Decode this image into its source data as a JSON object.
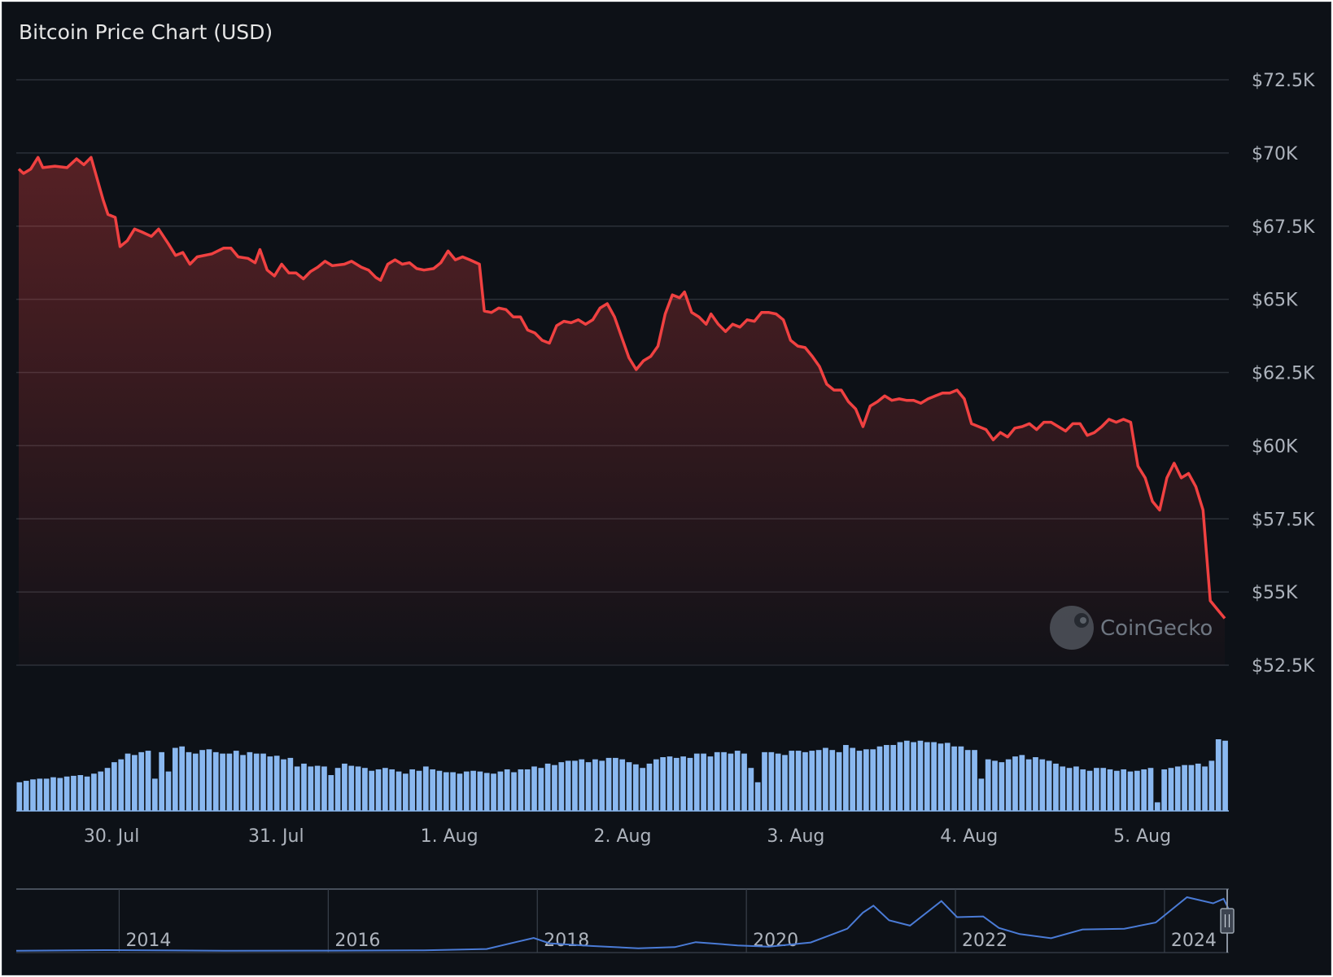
{
  "chart_data": {
    "type": "line",
    "title": "Bitcoin Price Chart (USD)",
    "currency": "USD",
    "watermark": "CoinGecko",
    "y_ticks": [
      52500,
      55000,
      57500,
      60000,
      62500,
      65000,
      67500,
      70000,
      72500
    ],
    "y_tick_labels": [
      "$52.5K",
      "$55K",
      "$57.5K",
      "$60K",
      "$62.5K",
      "$65K",
      "$67.5K",
      "$70K",
      "$72.5K"
    ],
    "ylim": [
      52500,
      72500
    ],
    "x_tick_labels": [
      "30. Jul",
      "31. Jul",
      "1. Aug",
      "2. Aug",
      "3. Aug",
      "4. Aug",
      "5. Aug"
    ],
    "x_tick_positions_days": [
      0.55,
      1.5,
      2.5,
      3.5,
      4.5,
      5.5,
      6.5
    ],
    "x_range_days": [
      0,
      7
    ],
    "colors": {
      "line": "#f04141",
      "volume": "#8ab8f0",
      "grid": "#2b3138",
      "navigator": "#4a7bd6"
    },
    "price_keypoints": [
      [
        0.0,
        69450
      ],
      [
        0.02,
        69300
      ],
      [
        0.05,
        69450
      ],
      [
        0.08,
        69850
      ],
      [
        0.1,
        69500
      ],
      [
        0.15,
        69550
      ],
      [
        0.2,
        69500
      ],
      [
        0.24,
        69800
      ],
      [
        0.27,
        69600
      ],
      [
        0.3,
        69850
      ],
      [
        0.35,
        68400
      ],
      [
        0.37,
        67900
      ],
      [
        0.4,
        67800
      ],
      [
        0.42,
        66800
      ],
      [
        0.45,
        67000
      ],
      [
        0.48,
        67400
      ],
      [
        0.51,
        67300
      ],
      [
        0.55,
        67150
      ],
      [
        0.58,
        67400
      ],
      [
        0.62,
        66900
      ],
      [
        0.65,
        66500
      ],
      [
        0.68,
        66600
      ],
      [
        0.71,
        66200
      ],
      [
        0.74,
        66450
      ],
      [
        0.8,
        66550
      ],
      [
        0.85,
        66750
      ],
      [
        0.88,
        66750
      ],
      [
        0.91,
        66450
      ],
      [
        0.95,
        66400
      ],
      [
        0.98,
        66250
      ],
      [
        1.0,
        66700
      ],
      [
        1.03,
        66000
      ],
      [
        1.06,
        65800
      ],
      [
        1.09,
        66200
      ],
      [
        1.12,
        65900
      ],
      [
        1.15,
        65900
      ],
      [
        1.18,
        65700
      ],
      [
        1.21,
        65950
      ],
      [
        1.24,
        66100
      ],
      [
        1.27,
        66300
      ],
      [
        1.3,
        66150
      ],
      [
        1.35,
        66200
      ],
      [
        1.38,
        66300
      ],
      [
        1.42,
        66100
      ],
      [
        1.45,
        66000
      ],
      [
        1.48,
        65750
      ],
      [
        1.5,
        65650
      ],
      [
        1.53,
        66200
      ],
      [
        1.56,
        66350
      ],
      [
        1.59,
        66200
      ],
      [
        1.62,
        66250
      ],
      [
        1.65,
        66050
      ],
      [
        1.68,
        66000
      ],
      [
        1.72,
        66050
      ],
      [
        1.75,
        66250
      ],
      [
        1.78,
        66650
      ],
      [
        1.81,
        66350
      ],
      [
        1.84,
        66450
      ],
      [
        1.87,
        66350
      ],
      [
        1.91,
        66200
      ],
      [
        1.93,
        64600
      ],
      [
        1.96,
        64550
      ],
      [
        1.99,
        64700
      ],
      [
        2.02,
        64650
      ],
      [
        2.05,
        64400
      ],
      [
        2.08,
        64400
      ],
      [
        2.11,
        63950
      ],
      [
        2.14,
        63850
      ],
      [
        2.17,
        63600
      ],
      [
        2.2,
        63500
      ],
      [
        2.23,
        64100
      ],
      [
        2.26,
        64250
      ],
      [
        2.29,
        64200
      ],
      [
        2.32,
        64300
      ],
      [
        2.35,
        64150
      ],
      [
        2.38,
        64300
      ],
      [
        2.41,
        64700
      ],
      [
        2.44,
        64850
      ],
      [
        2.47,
        64400
      ],
      [
        2.5,
        63700
      ],
      [
        2.53,
        63000
      ],
      [
        2.56,
        62600
      ],
      [
        2.59,
        62900
      ],
      [
        2.62,
        63050
      ],
      [
        2.65,
        63400
      ],
      [
        2.68,
        64500
      ],
      [
        2.71,
        65150
      ],
      [
        2.74,
        65050
      ],
      [
        2.76,
        65250
      ],
      [
        2.79,
        64550
      ],
      [
        2.82,
        64400
      ],
      [
        2.85,
        64150
      ],
      [
        2.87,
        64500
      ],
      [
        2.9,
        64150
      ],
      [
        2.93,
        63900
      ],
      [
        2.96,
        64150
      ],
      [
        2.99,
        64050
      ],
      [
        3.02,
        64300
      ],
      [
        3.05,
        64250
      ],
      [
        3.08,
        64550
      ],
      [
        3.11,
        64550
      ],
      [
        3.14,
        64500
      ],
      [
        3.17,
        64300
      ],
      [
        3.2,
        63600
      ],
      [
        3.23,
        63400
      ],
      [
        3.26,
        63350
      ],
      [
        3.29,
        63050
      ],
      [
        3.32,
        62700
      ],
      [
        3.35,
        62100
      ],
      [
        3.38,
        61900
      ],
      [
        3.41,
        61900
      ],
      [
        3.44,
        61500
      ],
      [
        3.47,
        61250
      ],
      [
        3.5,
        60650
      ],
      [
        3.53,
        61350
      ],
      [
        3.56,
        61500
      ],
      [
        3.59,
        61700
      ],
      [
        3.62,
        61550
      ],
      [
        3.65,
        61600
      ],
      [
        3.68,
        61550
      ],
      [
        3.71,
        61550
      ],
      [
        3.74,
        61450
      ],
      [
        3.77,
        61600
      ],
      [
        3.8,
        61700
      ],
      [
        3.83,
        61800
      ],
      [
        3.86,
        61800
      ],
      [
        3.89,
        61900
      ],
      [
        3.92,
        61600
      ],
      [
        3.95,
        60750
      ],
      [
        3.98,
        60650
      ],
      [
        4.01,
        60550
      ],
      [
        4.04,
        60200
      ],
      [
        4.07,
        60450
      ],
      [
        4.1,
        60300
      ],
      [
        4.13,
        60600
      ],
      [
        4.16,
        60650
      ],
      [
        4.19,
        60750
      ],
      [
        4.22,
        60550
      ],
      [
        4.25,
        60800
      ],
      [
        4.28,
        60800
      ],
      [
        4.31,
        60650
      ],
      [
        4.34,
        60500
      ],
      [
        4.37,
        60750
      ],
      [
        4.4,
        60750
      ],
      [
        4.43,
        60350
      ],
      [
        4.46,
        60450
      ],
      [
        4.49,
        60650
      ],
      [
        4.52,
        60900
      ],
      [
        4.55,
        60800
      ],
      [
        4.58,
        60900
      ],
      [
        4.61,
        60800
      ],
      [
        4.64,
        59300
      ],
      [
        4.67,
        58900
      ],
      [
        4.7,
        58100
      ],
      [
        4.73,
        57800
      ],
      [
        4.76,
        58900
      ],
      [
        4.79,
        59400
      ],
      [
        4.82,
        58900
      ],
      [
        4.85,
        59050
      ],
      [
        4.88,
        58600
      ],
      [
        4.91,
        57800
      ],
      [
        4.94,
        54700
      ],
      [
        4.97,
        54400
      ],
      [
        5.0,
        54100
      ]
    ],
    "volume_relative": [
      0.4,
      0.42,
      0.44,
      0.45,
      0.45,
      0.47,
      0.46,
      0.48,
      0.49,
      0.5,
      0.48,
      0.52,
      0.55,
      0.6,
      0.68,
      0.72,
      0.8,
      0.78,
      0.82,
      0.84,
      0.45,
      0.82,
      0.55,
      0.88,
      0.9,
      0.82,
      0.8,
      0.85,
      0.86,
      0.82,
      0.8,
      0.8,
      0.84,
      0.78,
      0.82,
      0.8,
      0.8,
      0.76,
      0.77,
      0.72,
      0.74,
      0.62,
      0.66,
      0.62,
      0.63,
      0.62,
      0.5,
      0.6,
      0.66,
      0.63,
      0.62,
      0.6,
      0.56,
      0.58,
      0.6,
      0.58,
      0.55,
      0.52,
      0.58,
      0.56,
      0.62,
      0.58,
      0.56,
      0.54,
      0.54,
      0.52,
      0.55,
      0.56,
      0.55,
      0.53,
      0.52,
      0.55,
      0.58,
      0.54,
      0.58,
      0.58,
      0.62,
      0.6,
      0.66,
      0.64,
      0.68,
      0.7,
      0.7,
      0.72,
      0.68,
      0.72,
      0.7,
      0.74,
      0.74,
      0.72,
      0.68,
      0.65,
      0.6,
      0.66,
      0.72,
      0.75,
      0.76,
      0.74,
      0.76,
      0.74,
      0.8,
      0.8,
      0.76,
      0.82,
      0.82,
      0.8,
      0.84,
      0.8,
      0.6,
      0.4,
      0.82,
      0.82,
      0.8,
      0.78,
      0.84,
      0.84,
      0.82,
      0.84,
      0.85,
      0.88,
      0.85,
      0.82,
      0.92,
      0.88,
      0.84,
      0.86,
      0.86,
      0.9,
      0.92,
      0.92,
      0.96,
      0.98,
      0.96,
      0.98,
      0.96,
      0.96,
      0.94,
      0.95,
      0.9,
      0.9,
      0.85,
      0.85,
      0.45,
      0.72,
      0.7,
      0.68,
      0.72,
      0.76,
      0.78,
      0.72,
      0.75,
      0.72,
      0.7,
      0.66,
      0.62,
      0.6,
      0.62,
      0.58,
      0.56,
      0.6,
      0.6,
      0.58,
      0.56,
      0.58,
      0.55,
      0.56,
      0.58,
      0.6,
      0.12,
      0.58,
      0.6,
      0.62,
      0.64,
      0.64,
      0.66,
      0.62,
      0.7,
      1.0,
      0.98
    ],
    "navigator": {
      "x_tick_labels": [
        "2014",
        "2016",
        "2018",
        "2020",
        "2022",
        "2024"
      ],
      "x_range_years": [
        2013.0,
        2024.6
      ],
      "price_keypoints": [
        [
          2013.0,
          200
        ],
        [
          2013.9,
          1100
        ],
        [
          2014.5,
          600
        ],
        [
          2015.0,
          250
        ],
        [
          2016.0,
          430
        ],
        [
          2016.9,
          900
        ],
        [
          2017.5,
          2500
        ],
        [
          2017.95,
          17000
        ],
        [
          2018.1,
          10000
        ],
        [
          2018.5,
          6500
        ],
        [
          2018.95,
          3500
        ],
        [
          2019.3,
          5000
        ],
        [
          2019.5,
          11500
        ],
        [
          2019.9,
          7200
        ],
        [
          2020.2,
          5500
        ],
        [
          2020.6,
          11000
        ],
        [
          2020.95,
          29000
        ],
        [
          2021.1,
          50000
        ],
        [
          2021.2,
          59000
        ],
        [
          2021.35,
          40000
        ],
        [
          2021.55,
          33000
        ],
        [
          2021.85,
          65000
        ],
        [
          2022.0,
          44000
        ],
        [
          2022.25,
          45000
        ],
        [
          2022.4,
          30000
        ],
        [
          2022.6,
          22000
        ],
        [
          2022.9,
          16500
        ],
        [
          2023.2,
          28000
        ],
        [
          2023.6,
          29000
        ],
        [
          2023.9,
          37000
        ],
        [
          2024.2,
          70000
        ],
        [
          2024.45,
          62000
        ],
        [
          2024.55,
          68000
        ],
        [
          2024.6,
          54000
        ]
      ]
    }
  }
}
